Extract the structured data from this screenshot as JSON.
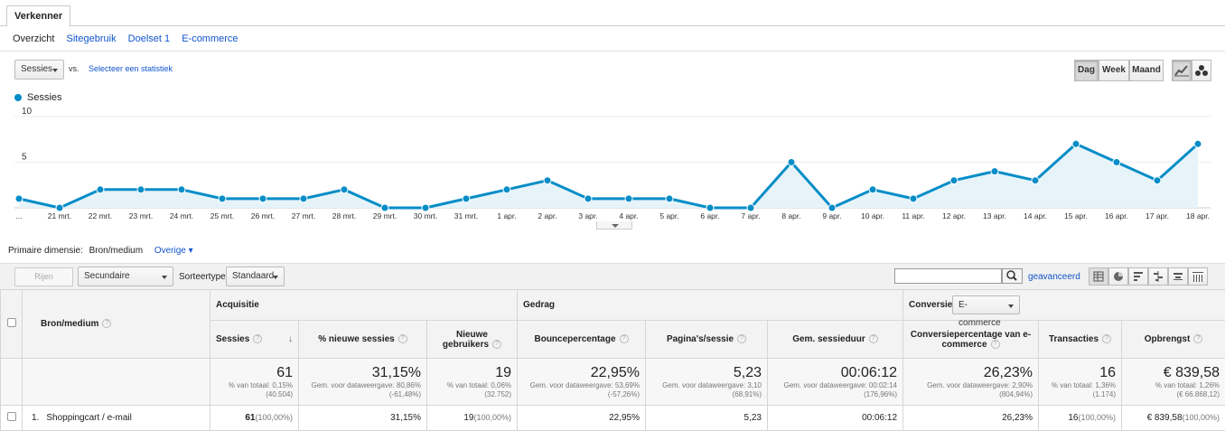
{
  "tab": {
    "label": "Verkenner"
  },
  "subtabs": [
    "Overzicht",
    "Sitegebruik",
    "Doelset 1",
    "E-commerce"
  ],
  "controls": {
    "metric": "Sessies",
    "vs": "vs.",
    "select_metric": "Selecteer een statistiek",
    "period_buttons": [
      "Dag",
      "Week",
      "Maand"
    ],
    "active_period": "Dag"
  },
  "chart_data": {
    "type": "area",
    "series": [
      {
        "name": "Sessies",
        "values": [
          1,
          0,
          2,
          2,
          2,
          1,
          1,
          1,
          2,
          0,
          0,
          1,
          2,
          3,
          1,
          1,
          1,
          0,
          0,
          5,
          0,
          2,
          1,
          3,
          4,
          3,
          7,
          5,
          3,
          7
        ]
      }
    ],
    "x": [
      "",
      "21 mrt.",
      "22 mrt.",
      "23 mrt.",
      "24 mrt.",
      "25 mrt.",
      "26 mrt.",
      "27 mrt.",
      "28 mrt.",
      "29 mrt.",
      "30 mrt.",
      "31 mrt.",
      "1 apr.",
      "2 apr.",
      "3 apr.",
      "4 apr.",
      "5 apr.",
      "6 apr.",
      "7 apr.",
      "8 apr.",
      "9 apr.",
      "10 apr.",
      "11 apr.",
      "12 apr.",
      "13 apr.",
      "14 apr.",
      "15 apr.",
      "16 apr.",
      "17 apr.",
      "18 apr."
    ],
    "y_ticks": [
      "10",
      "5"
    ],
    "ylim": [
      0,
      10
    ],
    "first_tick": "...",
    "color": "#058dc7"
  },
  "dimension": {
    "label": "Primaire dimensie:",
    "current": "Bron/medium",
    "other": "Overige"
  },
  "toolbar": {
    "rows_button": "Rijen weergeven",
    "secondary": "Secundaire dimensie",
    "sort_label": "Sorteertype:",
    "sort_value": "Standaard",
    "advanced": "geavanceerd",
    "search_placeholder": ""
  },
  "table": {
    "dim_header": "Bron/medium",
    "groups": {
      "acquisition": "Acquisitie",
      "behavior": "Gedrag",
      "conversions": "Conversies",
      "conv_select": "E-commerce"
    },
    "columns": [
      "Sessies",
      "% nieuwe sessies",
      "Nieuwe gebruikers",
      "Bouncepercentage",
      "Pagina's/sessie",
      "Gem. sessieduur",
      "Conversiepercentage van e-commerce",
      "Transacties",
      "Opbrengst"
    ],
    "totals": [
      {
        "value": "61",
        "l1": "% van totaal: 0,15%",
        "l2": "(40.504)"
      },
      {
        "value": "31,15%",
        "l1": "Gem. voor dataweergave: 80,86%",
        "l2": "(-61,48%)"
      },
      {
        "value": "19",
        "l1": "% van totaal: 0,06%",
        "l2": "(32.752)"
      },
      {
        "value": "22,95%",
        "l1": "Gem. voor dataweergave: 53,69%",
        "l2": "(-57,26%)"
      },
      {
        "value": "5,23",
        "l1": "Gem. voor dataweergave: 3,10",
        "l2": "(68,91%)"
      },
      {
        "value": "00:06:12",
        "l1": "Gem. voor dataweergave: 00:02:14",
        "l2": "(176,96%)"
      },
      {
        "value": "26,23%",
        "l1": "Gem. voor dataweergave: 2,90%",
        "l2": "(804,94%)"
      },
      {
        "value": "16",
        "l1": "% van totaal: 1,36%",
        "l2": "(1.174)"
      },
      {
        "value": "€ 839,58",
        "l1": "% van totaal: 1,26%",
        "l2": "(€ 66.868,12)"
      }
    ],
    "row": {
      "index": "1.",
      "name": "Shoppingcart / e-mail",
      "cells": [
        {
          "v": "61",
          "p": "(100,00%)"
        },
        {
          "v": "31,15%",
          "p": ""
        },
        {
          "v": "19",
          "p": "(100,00%)"
        },
        {
          "v": "22,95%",
          "p": ""
        },
        {
          "v": "5,23",
          "p": ""
        },
        {
          "v": "00:06:12",
          "p": ""
        },
        {
          "v": "26,23%",
          "p": ""
        },
        {
          "v": "16",
          "p": "(100,00%)"
        },
        {
          "v": "€ 839,58",
          "p": "(100,00%)"
        }
      ]
    }
  }
}
